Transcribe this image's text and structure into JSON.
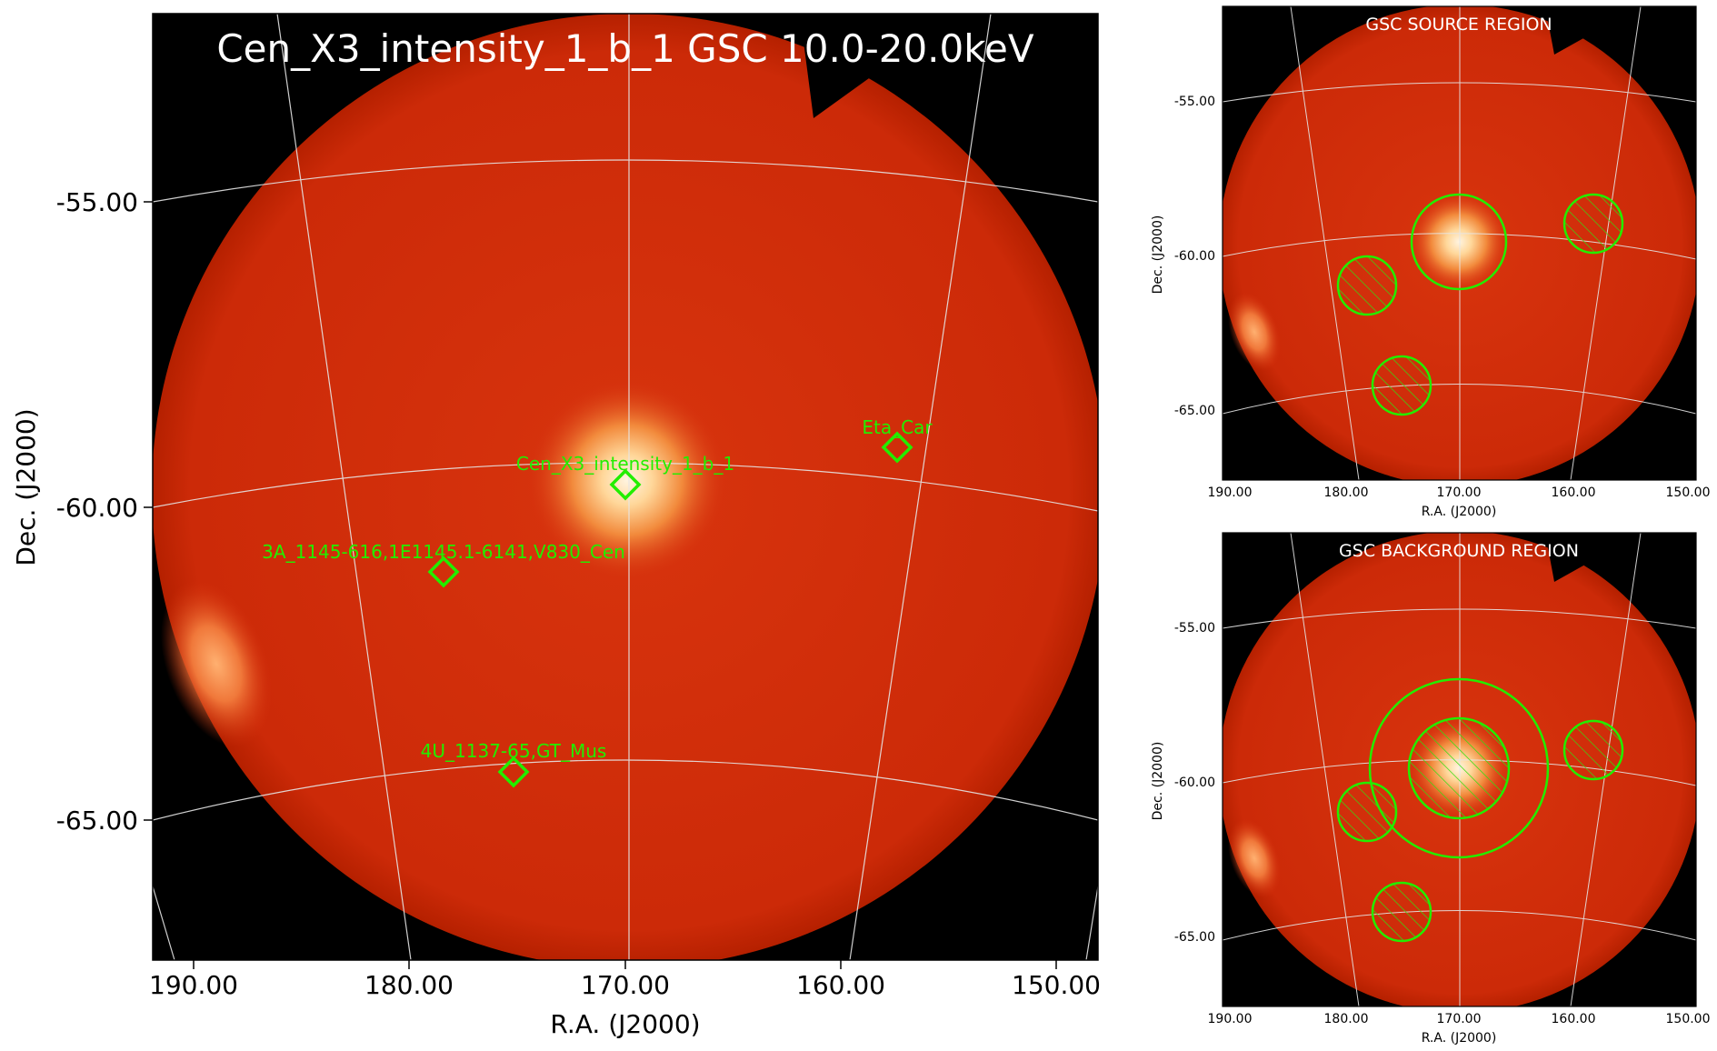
{
  "main": {
    "title": "Cen_X3_intensity_1_b_1 GSC 10.0-20.0keV",
    "xlabel": "R.A. (J2000)",
    "ylabel": "Dec. (J2000)",
    "xticks": [
      "190.00",
      "180.00",
      "170.00",
      "160.00",
      "150.00"
    ],
    "yticks": [
      "-55.00",
      "-60.00",
      "-65.00"
    ],
    "sources": [
      {
        "label": "Cen_X3_intensity_1_b_1"
      },
      {
        "label": "Eta_Car"
      },
      {
        "label": "3A_1145-616,1E1145.1-6141,V830_Cen"
      },
      {
        "label": "4U_1137-65,GT_Mus"
      }
    ]
  },
  "source_panel": {
    "title": "GSC SOURCE REGION",
    "xlabel": "R.A. (J2000)",
    "ylabel": "Dec. (J2000)",
    "xticks": [
      "190.00",
      "180.00",
      "170.00",
      "160.00",
      "150.00"
    ],
    "yticks": [
      "-55.00",
      "-60.00",
      "-65.00"
    ]
  },
  "background_panel": {
    "title": "GSC BACKGROUND REGION",
    "xlabel": "R.A. (J2000)",
    "ylabel": "Dec. (J2000)",
    "xticks": [
      "190.00",
      "180.00",
      "170.00",
      "160.00",
      "150.00"
    ],
    "yticks": [
      "-55.00",
      "-60.00",
      "-65.00"
    ]
  },
  "colors": {
    "map_red": "#cc2a08",
    "sky_background": "#000000",
    "marker_green": "#22dd00",
    "grid": "#dddddd"
  }
}
